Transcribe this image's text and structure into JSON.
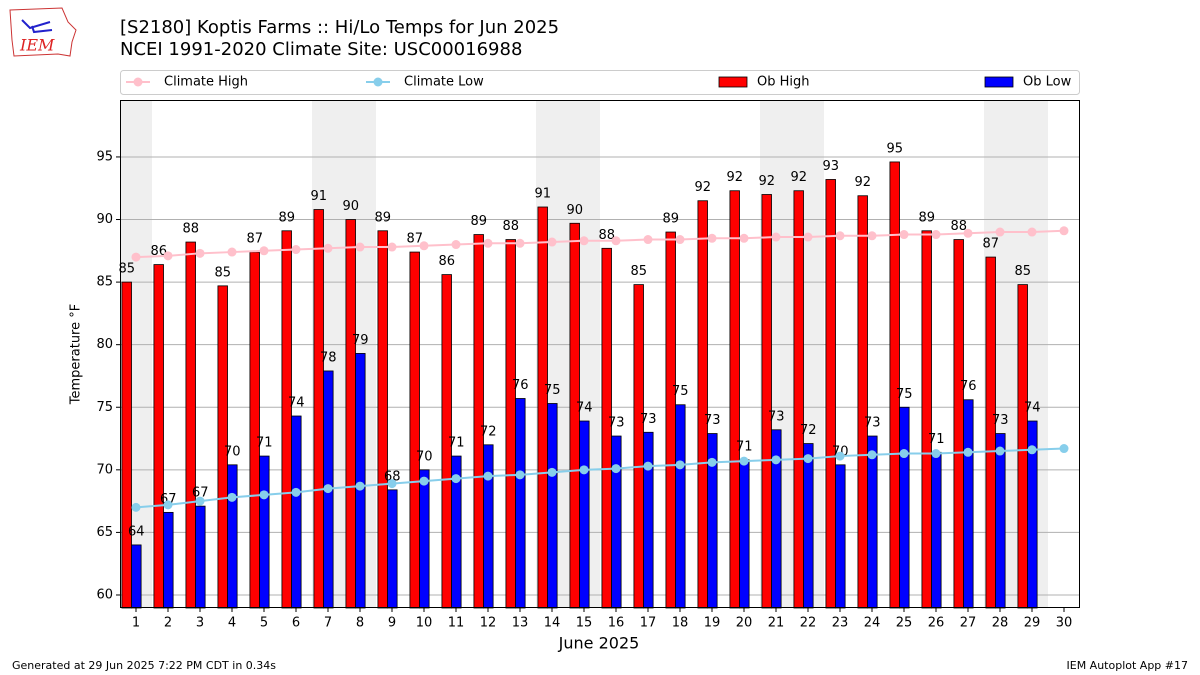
{
  "logo": "IEM",
  "footer": {
    "left": "Generated at 29 Jun 2025 7:22 PM CDT in 0.34s",
    "right": "IEM Autoplot App #17"
  },
  "chart_data": {
    "type": "bar",
    "title": "[S2180] Koptis Farms :: Hi/Lo Temps for Jun 2025",
    "subtitle": "NCEI 1991-2020 Climate Site: USC00016988",
    "x_label": "June 2025",
    "y_label": "Temperature °F",
    "x": [
      1,
      2,
      3,
      4,
      5,
      6,
      7,
      8,
      9,
      10,
      11,
      12,
      13,
      14,
      15,
      16,
      17,
      18,
      19,
      20,
      21,
      22,
      23,
      24,
      25,
      26,
      27,
      28,
      29,
      30
    ],
    "xlim": [
      0.5,
      30.5
    ],
    "xticks": [
      1,
      2,
      3,
      4,
      5,
      6,
      7,
      8,
      9,
      10,
      11,
      12,
      13,
      14,
      15,
      16,
      17,
      18,
      19,
      20,
      21,
      22,
      23,
      24,
      25,
      26,
      27,
      28,
      29,
      30
    ],
    "ylim": [
      58.96,
      99.55
    ],
    "yticks": [
      60,
      65,
      70,
      75,
      80,
      85,
      90,
      95
    ],
    "grid": true,
    "legend_position": "above",
    "series": [
      {
        "name": "Climate High",
        "type": "line",
        "color": "#ffc0cb",
        "values": [
          87.0,
          87.1,
          87.3,
          87.4,
          87.5,
          87.6,
          87.7,
          87.8,
          87.8,
          87.9,
          88.0,
          88.1,
          88.1,
          88.2,
          88.3,
          88.3,
          88.4,
          88.4,
          88.5,
          88.5,
          88.6,
          88.6,
          88.7,
          88.7,
          88.8,
          88.8,
          88.9,
          89.0,
          89.0,
          89.1
        ]
      },
      {
        "name": "Climate Low",
        "type": "line",
        "color": "#87ceeb",
        "values": [
          67.0,
          67.2,
          67.5,
          67.8,
          68.0,
          68.2,
          68.5,
          68.7,
          68.9,
          69.1,
          69.3,
          69.5,
          69.6,
          69.8,
          70.0,
          70.1,
          70.3,
          70.4,
          70.6,
          70.7,
          70.8,
          70.9,
          71.1,
          71.2,
          71.3,
          71.3,
          71.4,
          71.5,
          71.6,
          71.7
        ]
      },
      {
        "name": "Ob High",
        "type": "bar",
        "color": "#ff0000",
        "values": [
          85.0,
          86.4,
          88.2,
          84.7,
          87.4,
          89.1,
          90.8,
          90.0,
          89.1,
          87.4,
          85.6,
          88.8,
          88.4,
          91.0,
          89.7,
          87.7,
          84.8,
          89.0,
          91.5,
          92.3,
          92.0,
          92.3,
          93.2,
          91.9,
          94.6,
          89.1,
          88.4,
          87.0,
          84.8,
          null
        ],
        "value_labels": [
          "85",
          "86",
          "88",
          "85",
          "87",
          "89",
          "91",
          "90",
          "89",
          "87",
          "86",
          "89",
          "88",
          "91",
          "90",
          "88",
          "85",
          "89",
          "92",
          "92",
          "92",
          "92",
          "93",
          "92",
          "95",
          "89",
          "88",
          "87",
          "85",
          null
        ]
      },
      {
        "name": "Ob Low",
        "type": "bar",
        "color": "#0000ff",
        "values": [
          64.0,
          66.6,
          67.1,
          70.4,
          71.1,
          74.3,
          77.9,
          79.3,
          68.4,
          70.0,
          71.1,
          72.0,
          75.7,
          75.3,
          73.9,
          72.7,
          73.0,
          75.2,
          72.9,
          70.8,
          73.2,
          72.1,
          70.4,
          72.7,
          75.0,
          71.4,
          75.6,
          72.9,
          73.9,
          null
        ],
        "value_labels": [
          "64",
          "67",
          "67",
          "70",
          "71",
          "74",
          "78",
          "79",
          "68",
          "70",
          "71",
          "72",
          "76",
          "75",
          "74",
          "73",
          "73",
          "75",
          "73",
          "71",
          "73",
          "72",
          "70",
          "73",
          "75",
          "71",
          "76",
          "73",
          "74",
          null
        ]
      }
    ]
  }
}
